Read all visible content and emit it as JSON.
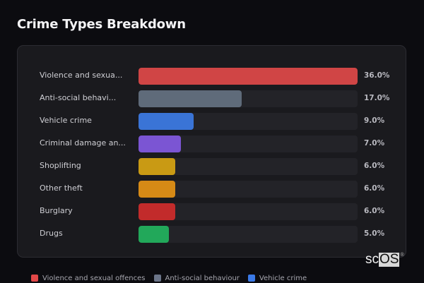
{
  "title": "Crime Types Breakdown",
  "chart_data": {
    "type": "bar",
    "orientation": "horizontal",
    "title": "Crime Types Breakdown",
    "categories": [
      "Violence and sexual offences",
      "Anti-social behaviour",
      "Vehicle crime",
      "Criminal damage and arson",
      "Shoplifting",
      "Other theft",
      "Burglary",
      "Drugs"
    ],
    "display_labels": [
      "Violence and sexua...",
      "Anti-social behavi...",
      "Vehicle crime",
      "Criminal damage an...",
      "Shoplifting",
      "Other theft",
      "Burglary",
      "Drugs"
    ],
    "values": [
      36.0,
      17.0,
      9.0,
      7.0,
      6.0,
      6.0,
      6.0,
      5.0
    ],
    "value_labels": [
      "36.0%",
      "17.0%",
      "9.0%",
      "7.0%",
      "6.0%",
      "6.0%",
      "6.0%",
      "5.0%"
    ],
    "colors": [
      "#d04545",
      "#5f6b7a",
      "#3a74d6",
      "#7b55d3",
      "#c99a14",
      "#d68a16",
      "#c22b2b",
      "#22a85a"
    ],
    "xlabel": "",
    "ylabel": "",
    "xlim": [
      0,
      36
    ],
    "grid": false,
    "legend_position": "bottom"
  },
  "legend": [
    {
      "label": "Violence and sexual offences",
      "color": "#e24848"
    },
    {
      "label": "Anti-social behaviour",
      "color": "#6b7589"
    },
    {
      "label": "Vehicle crime",
      "color": "#3b7ae8"
    }
  ],
  "brand": {
    "sc": "sc",
    "os": "OS",
    "reg": "®"
  }
}
